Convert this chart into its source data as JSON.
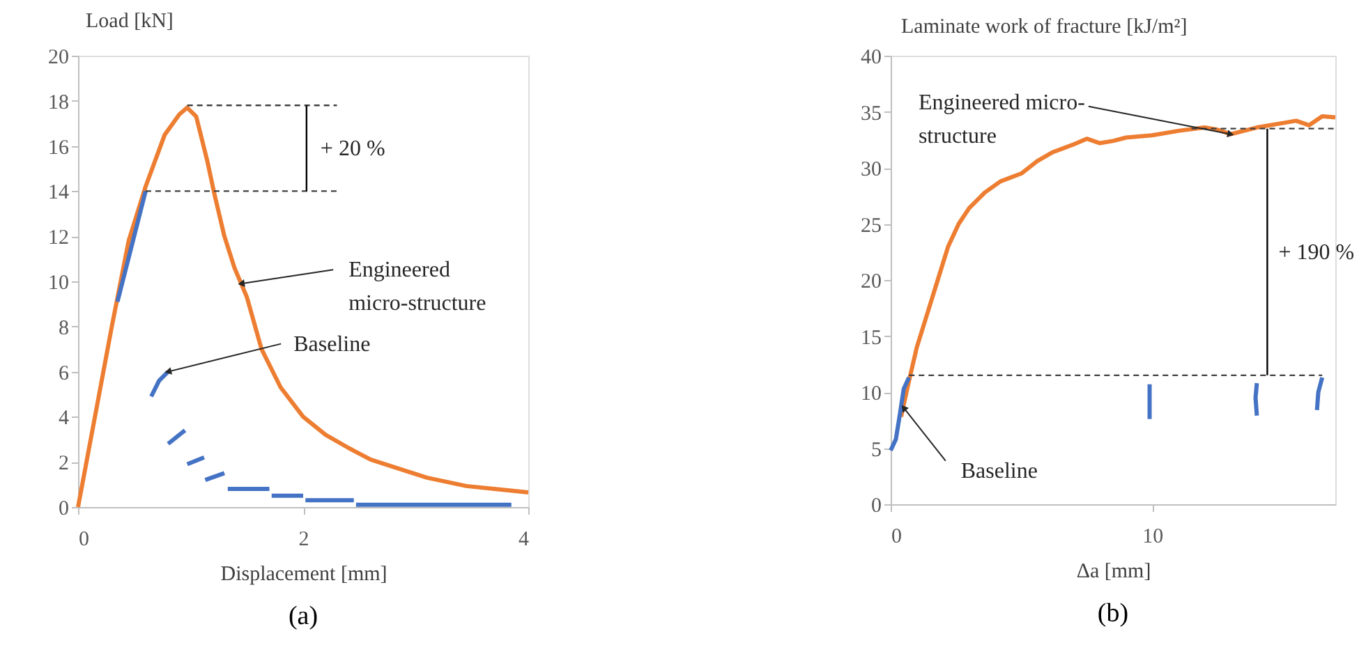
{
  "chart_data": [
    {
      "type": "line",
      "title": "(a)",
      "xlabel": "Displacement [mm]",
      "ylabel": "Load [kN]",
      "xlim": [
        0,
        4
      ],
      "xticks": [
        0,
        2,
        4
      ],
      "ylim": [
        0,
        20
      ],
      "yticks": [
        0,
        2,
        4,
        6,
        8,
        10,
        12,
        14,
        16,
        18,
        20
      ],
      "grid": false,
      "series": [
        {
          "color": "#ed7d31",
          "x": [
            0,
            0.3,
            0.45,
            0.6,
            0.77,
            0.9,
            0.97,
            1.05,
            1.15,
            1.21,
            1.3,
            1.39,
            1.5,
            1.63,
            1.8,
            2.0,
            2.2,
            2.41,
            2.6,
            2.83,
            3.1,
            3.45,
            3.7,
            4.0
          ],
          "values": [
            0,
            8,
            11.8,
            14.2,
            16.5,
            17.4,
            17.7,
            17.3,
            15.3,
            13.9,
            12.0,
            10.6,
            9.3,
            7.0,
            5.3,
            4.0,
            3.2,
            2.6,
            2.1,
            1.73,
            1.3,
            0.93,
            0.8,
            0.65
          ]
        },
        {
          "color": "#4472c4",
          "x": [
            0.35,
            0.6
          ],
          "values": [
            9.1,
            14
          ]
        },
        {
          "color": "#4472c4",
          "x": [
            0.65,
            0.72,
            0.8
          ],
          "values": [
            4.9,
            5.6,
            6.0
          ]
        },
        {
          "color": "#4472c4",
          "x": [
            0.8,
            0.95
          ],
          "values": [
            2.8,
            3.4
          ]
        },
        {
          "color": "#4472c4",
          "x": [
            0.97,
            1.12
          ],
          "values": [
            1.9,
            2.2
          ]
        },
        {
          "color": "#4472c4",
          "x": [
            1.13,
            1.3
          ],
          "values": [
            1.2,
            1.5
          ]
        },
        {
          "color": "#4472c4",
          "x": [
            1.33,
            1.7
          ],
          "values": [
            0.8,
            0.8
          ]
        },
        {
          "color": "#4472c4",
          "x": [
            1.72,
            2.0
          ],
          "values": [
            0.5,
            0.5
          ]
        },
        {
          "color": "#4472c4",
          "x": [
            2.02,
            2.45
          ],
          "values": [
            0.3,
            0.3
          ]
        },
        {
          "color": "#4472c4",
          "x": [
            2.47,
            3.85
          ],
          "values": [
            0.1,
            0.1
          ]
        },
        {
          "color": "#404040",
          "line_style": "dashed",
          "x": [
            0.97,
            2.3
          ],
          "values": [
            17.8,
            17.8
          ]
        },
        {
          "color": "#404040",
          "line_style": "dashed",
          "x": [
            0.6,
            2.3
          ],
          "values": [
            14,
            14
          ]
        },
        {
          "color": "#000000",
          "x": [
            2.03,
            2.03
          ],
          "values": [
            14,
            17.8
          ]
        }
      ],
      "annotations": [
        {
          "text": "+ 20 %",
          "x": 2.03,
          "y": 15.9
        },
        {
          "text": "Engineered\nmicro-structure",
          "x": 1.45,
          "y": 9.9
        },
        {
          "text": "Baseline",
          "x": 0.8,
          "y": 6.0
        }
      ]
    },
    {
      "type": "line",
      "title": "(b)",
      "xlabel": "Δa [mm]",
      "ylabel": "Laminate work of fracture [kJ/m²]",
      "xlim": [
        0,
        17
      ],
      "xticks": [
        0,
        10
      ],
      "ylim": [
        0,
        40
      ],
      "yticks": [
        0,
        5,
        10,
        15,
        20,
        25,
        30,
        35,
        40
      ],
      "grid": false,
      "series": [
        {
          "color": "#ed7d31",
          "x": [
            0.4,
            0.7,
            1.0,
            1.4,
            1.8,
            2.2,
            2.6,
            3.0,
            3.6,
            4.2,
            5.0,
            5.6,
            6.2,
            7.0,
            7.5,
            8.0,
            8.5,
            9.0,
            10.0,
            11.0,
            12.0,
            12.5,
            13.0,
            13.5,
            14.0,
            15.0,
            15.5,
            16.0,
            16.5,
            17.0
          ],
          "values": [
            7.8,
            11,
            14,
            17,
            20,
            23,
            25,
            26.4,
            27.8,
            28.8,
            29.5,
            30.6,
            31.4,
            32.1,
            32.6,
            32.2,
            32.4,
            32.7,
            32.9,
            33.3,
            33.6,
            33.4,
            33.0,
            33.3,
            33.6,
            34.0,
            34.2,
            33.8,
            34.6,
            34.5
          ]
        },
        {
          "color": "#4472c4",
          "x": [
            0,
            0.2,
            0.35,
            0.5,
            0.7
          ],
          "values": [
            4.8,
            5.8,
            8,
            10.3,
            11.3
          ]
        },
        {
          "color": "#4472c4",
          "x": [
            9.9,
            9.9
          ],
          "values": [
            10.7,
            7.6
          ]
        },
        {
          "color": "#4472c4",
          "x": [
            14.0,
            13.95,
            14.0
          ],
          "values": [
            10.8,
            9.5,
            7.9
          ]
        },
        {
          "color": "#4472c4",
          "x": [
            16.3,
            16.35,
            16.5
          ],
          "values": [
            8.4,
            10,
            11.3
          ]
        },
        {
          "color": "#404040",
          "line_style": "dashed",
          "x": [
            11.5,
            17
          ],
          "values": [
            33.5,
            33.5
          ]
        },
        {
          "color": "#404040",
          "line_style": "dashed",
          "x": [
            0.7,
            16.5
          ],
          "values": [
            11.5,
            11.5
          ]
        },
        {
          "color": "#000000",
          "x": [
            14.4,
            14.4
          ],
          "values": [
            11.5,
            33.5
          ]
        }
      ],
      "annotations": [
        {
          "text": "Engineered micro-\nstructure",
          "x": 13.0,
          "y": 33.0
        },
        {
          "text": "+ 190 %",
          "x": 14.4,
          "y": 22.5
        },
        {
          "text": "Baseline",
          "x": 0.5,
          "y": 8.6
        }
      ]
    }
  ]
}
